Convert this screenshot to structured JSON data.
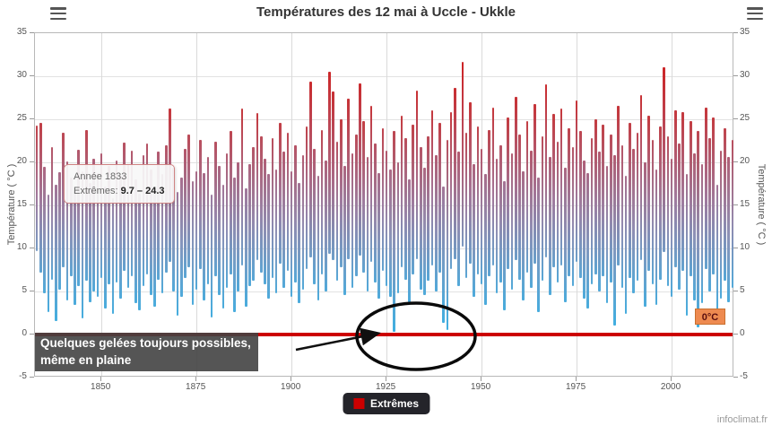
{
  "header": {
    "title": "Températures des 12 mai à Uccle - Ukkle"
  },
  "chart_data": {
    "type": "columnrange",
    "title": "Températures des 12 mai à Uccle - Ukkle",
    "series_name": "Extrêmes",
    "ylabel_left": "Température ( °C )",
    "ylabel_right": "Température ( °C )",
    "ylim": [
      -5,
      35
    ],
    "y_ticks": [
      -5,
      0,
      5,
      10,
      15,
      20,
      25,
      30,
      35
    ],
    "x_ticks": [
      1850,
      1875,
      1900,
      1925,
      1950,
      1975,
      2000
    ],
    "start_year": 1833,
    "end_year": 2016,
    "grid": true,
    "zero_line_value": 0,
    "zero_line_color": "#cc0000",
    "color_stops": [
      [
        -5,
        "#29b6ea"
      ],
      [
        6,
        "#54a8d8"
      ],
      [
        12,
        "#8b93b8"
      ],
      [
        17,
        "#a2779a"
      ],
      [
        21,
        "#b25a70"
      ],
      [
        25,
        "#c43b40"
      ],
      [
        35,
        "#d21616"
      ]
    ],
    "max": [
      24.3,
      24.6,
      19.5,
      16.2,
      21.8,
      17.4,
      18.9,
      23.4,
      20.1,
      18.2,
      16.8,
      21.5,
      19.0,
      23.8,
      17.6,
      20.4,
      18.8,
      21.0,
      17.2,
      19.6,
      15.8,
      20.2,
      18.4,
      22.3,
      19.8,
      21.4,
      18.0,
      16.4,
      20.8,
      22.2,
      19.2,
      17.0,
      21.2,
      18.6,
      22.0,
      26.3,
      19.4,
      16.6,
      18.2,
      21.6,
      23.2,
      17.8,
      19.0,
      22.6,
      18.8,
      20.6,
      16.2,
      22.4,
      19.6,
      17.4,
      21.0,
      23.6,
      18.2,
      20.0,
      26.2,
      17.0,
      19.8,
      21.8,
      25.7,
      23.0,
      20.4,
      18.6,
      22.8,
      19.2,
      24.6,
      21.2,
      23.4,
      19.0,
      22.0,
      17.6,
      20.8,
      24.2,
      29.4,
      21.6,
      18.4,
      23.8,
      20.2,
      30.5,
      28.2,
      22.4,
      25.0,
      19.6,
      27.4,
      21.0,
      23.2,
      29.2,
      24.8,
      20.6,
      26.6,
      22.2,
      18.8,
      24.0,
      21.4,
      19.2,
      23.6,
      20.0,
      25.4,
      22.8,
      18.0,
      24.4,
      28.3,
      21.8,
      19.4,
      23.0,
      26.0,
      20.8,
      24.6,
      17.2,
      22.6,
      25.8,
      28.6,
      21.2,
      31.7,
      23.4,
      27.0,
      19.8,
      24.2,
      21.6,
      18.6,
      23.8,
      26.4,
      20.4,
      22.0,
      17.8,
      25.2,
      21.0,
      27.6,
      23.2,
      19.0,
      24.8,
      21.4,
      26.8,
      18.2,
      23.0,
      29.1,
      20.6,
      25.6,
      22.4,
      26.2,
      19.4,
      24.0,
      21.8,
      27.2,
      23.6,
      20.2,
      18.8,
      22.8,
      25.0,
      21.2,
      24.4,
      19.6,
      23.2,
      20.8,
      26.6,
      22.0,
      18.4,
      24.6,
      21.6,
      23.4,
      27.8,
      20.0,
      25.4,
      22.6,
      19.2,
      24.2,
      31.0,
      23.0,
      20.4,
      26.0,
      22.2,
      25.8,
      18.6,
      24.8,
      21.0,
      23.6,
      19.8,
      26.4,
      22.8,
      25.2,
      17.4,
      21.4,
      24.0,
      20.6,
      22.6
    ],
    "min": [
      9.7,
      7.2,
      4.8,
      2.6,
      6.4,
      1.6,
      5.2,
      7.8,
      4.0,
      6.8,
      3.4,
      5.6,
      1.9,
      6.2,
      3.8,
      5.0,
      4.4,
      6.6,
      3.0,
      5.8,
      2.4,
      6.0,
      4.2,
      7.4,
      5.4,
      6.8,
      3.6,
      2.8,
      5.6,
      7.0,
      4.6,
      3.2,
      6.4,
      4.8,
      7.2,
      8.4,
      5.0,
      2.2,
      4.4,
      6.6,
      7.8,
      3.4,
      5.2,
      7.6,
      4.0,
      5.8,
      2.0,
      6.8,
      4.6,
      3.0,
      5.4,
      7.0,
      2.6,
      5.0,
      8.0,
      3.2,
      5.6,
      6.2,
      8.6,
      7.2,
      5.8,
      4.2,
      6.6,
      4.8,
      8.2,
      5.4,
      7.4,
      4.4,
      6.0,
      3.6,
      5.2,
      7.6,
      9.0,
      5.8,
      4.0,
      7.0,
      5.0,
      9.4,
      8.6,
      6.2,
      7.8,
      4.6,
      8.8,
      5.4,
      6.8,
      9.2,
      7.2,
      5.0,
      8.4,
      6.0,
      4.2,
      7.4,
      5.6,
      4.4,
      0.3,
      4.8,
      7.8,
      6.4,
      3.8,
      7.0,
      8.8,
      5.2,
      4.6,
      6.2,
      8.0,
      5.0,
      7.2,
      1.4,
      0.5,
      7.6,
      8.8,
      5.6,
      10.2,
      6.6,
      8.2,
      4.4,
      7.0,
      5.8,
      3.4,
      6.8,
      8.0,
      4.8,
      6.0,
      2.8,
      7.6,
      5.2,
      8.6,
      6.4,
      4.0,
      7.2,
      5.4,
      8.2,
      2.6,
      6.2,
      9.0,
      4.6,
      7.8,
      6.0,
      8.0,
      3.8,
      6.8,
      5.6,
      8.4,
      6.6,
      4.2,
      3.0,
      5.8,
      7.0,
      5.0,
      6.8,
      3.6,
      6.0,
      1.0,
      8.0,
      5.4,
      2.4,
      6.6,
      4.8,
      6.2,
      8.6,
      3.2,
      7.4,
      5.8,
      3.4,
      6.4,
      9.6,
      5.6,
      4.4,
      7.8,
      5.2,
      7.4,
      2.2,
      6.8,
      4.0,
      0.8,
      3.6,
      7.6,
      5.0,
      7.0,
      2.0,
      4.2,
      6.2,
      3.8,
      5.4
    ]
  },
  "tooltip": {
    "year_label": "Année 1833",
    "extremes_label": "Extrêmes:",
    "values": "9.7 – 24.3"
  },
  "annotation": {
    "line1": "Quelques gelées toujours possibles,",
    "line2": "même en plaine"
  },
  "zero_label": "0°C",
  "legend": {
    "label": "Extrêmes",
    "swatch_color": "#cc0000"
  },
  "credit": "infoclimat.fr"
}
